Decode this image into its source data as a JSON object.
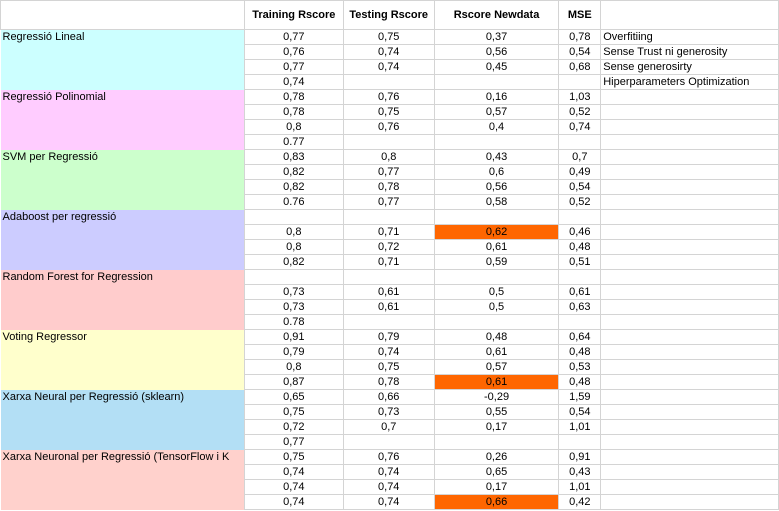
{
  "headers": [
    "",
    "Training Rscore",
    "Testing Rscore",
    "Rscore Newdata",
    "MSE",
    ""
  ],
  "models": [
    {
      "name": "Regressió Lineal",
      "color": "#ccffff",
      "rows": [
        [
          "0,77",
          "0,75",
          "0,37",
          "0,78",
          "Overfitiing"
        ],
        [
          "0,76",
          "0,74",
          "0,56",
          "0,54",
          "Sense Trust ni generosity"
        ],
        [
          "0,77",
          "0,74",
          "0,45",
          "0,68",
          "Sense generosirty"
        ],
        [
          "0,74",
          "",
          "",
          "",
          "Hiperparameters Optimization"
        ]
      ]
    },
    {
      "name": "Regressió Polinomial",
      "color": "#ffccff",
      "rows": [
        [
          "0,78",
          "0,76",
          "0,16",
          "1,03",
          ""
        ],
        [
          "0,78",
          "0,75",
          "0,57",
          "0,52",
          ""
        ],
        [
          "0,8",
          "0,76",
          "0,4",
          "0,74",
          ""
        ],
        [
          "0.77",
          "",
          "",
          "",
          ""
        ]
      ]
    },
    {
      "name": "SVM  per Regressió",
      "color": "#ccffcc",
      "rows": [
        [
          "0,83",
          "0,8",
          "0,43",
          "0,7",
          ""
        ],
        [
          "0,82",
          "0,77",
          "0,6",
          "0,49",
          ""
        ],
        [
          "0,82",
          "0,78",
          "0,56",
          "0,54",
          ""
        ],
        [
          "0.76",
          "0,77",
          "0,58",
          "0,52",
          ""
        ]
      ]
    },
    {
      "name": "Adaboost per regressió",
      "color": "#ccccff",
      "rows": [
        [
          "",
          "",
          "",
          "",
          ""
        ],
        [
          "0,8",
          "0,71",
          "0,62",
          "0,46",
          ""
        ],
        [
          "0,8",
          "0,72",
          "0,61",
          "0,48",
          ""
        ],
        [
          "0,82",
          "0,71",
          "0,59",
          "0,51",
          ""
        ]
      ]
    },
    {
      "name": "Random Forest for Regression",
      "color": "#ffcccc",
      "rows": [
        [
          "",
          "",
          "",
          "",
          ""
        ],
        [
          "0,73",
          "0,61",
          "0,5",
          "0,61",
          ""
        ],
        [
          "0,73",
          "0,61",
          "0,5",
          "0,63",
          ""
        ],
        [
          "0.78",
          "",
          "",
          "",
          ""
        ]
      ]
    },
    {
      "name": "Voting Regressor",
      "color": "#ffffcc",
      "rows": [
        [
          "0,91",
          "0,79",
          "0,48",
          "0,64",
          ""
        ],
        [
          "0,79",
          "0,74",
          "0,61",
          "0,48",
          ""
        ],
        [
          "0,8",
          "0,75",
          "0,57",
          "0,53",
          ""
        ],
        [
          "0,87",
          "0,78",
          "0,61",
          "0,48",
          ""
        ]
      ]
    },
    {
      "name": "Xarxa Neural per Regressió (sklearn)",
      "color": "#b3dff5",
      "rows": [
        [
          "0,65",
          "0,66",
          "-0,29",
          "1,59",
          ""
        ],
        [
          "0,75",
          "0,73",
          "0,55",
          "0,54",
          ""
        ],
        [
          "0,72",
          "0,7",
          "0,17",
          "1,01",
          ""
        ],
        [
          "0,77",
          "",
          "",
          "",
          ""
        ]
      ]
    },
    {
      "name": "Xarxa Neuronal per Regressió (TensorFlow i K",
      "color": "#ffd1cc",
      "rows": [
        [
          "0,75",
          "0,76",
          "0,26",
          "0,91",
          ""
        ],
        [
          "0,74",
          "0,74",
          "0,65",
          "0,43",
          ""
        ],
        [
          "0,74",
          "0,74",
          "0,17",
          "1,01",
          ""
        ],
        [
          "0,74",
          "0,74",
          "0,66",
          "0,42",
          ""
        ]
      ]
    }
  ],
  "highlight_color": "#ff6600",
  "highlights": [
    {
      "model": 3,
      "row": 1,
      "col": 2
    },
    {
      "model": 5,
      "row": 3,
      "col": 2
    },
    {
      "model": 7,
      "row": 3,
      "col": 2
    }
  ]
}
